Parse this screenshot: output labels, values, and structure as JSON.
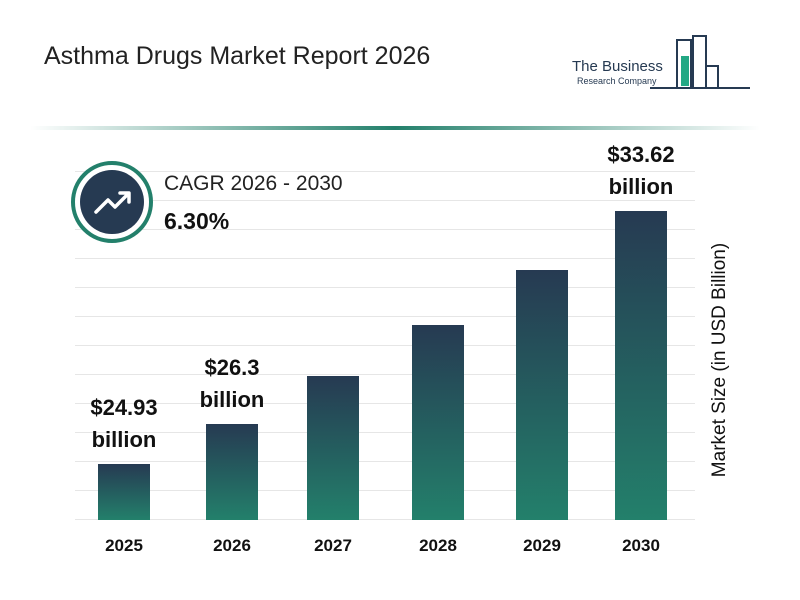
{
  "title": "Asthma Drugs Market Report 2026",
  "logo": {
    "line1": "The Business",
    "line2": "Research Company"
  },
  "cagr": {
    "label": "CAGR 2026 - 2030",
    "value": "6.30%"
  },
  "chart_data": {
    "type": "bar",
    "categories": [
      "2025",
      "2026",
      "2027",
      "2028",
      "2029",
      "2030"
    ],
    "values": [
      24.93,
      26.3,
      27.96,
      29.72,
      31.59,
      33.62
    ],
    "value_labels": [
      "$24.93 billion",
      "$26.3 billion",
      null,
      null,
      null,
      "$33.62 billion"
    ],
    "y_label": "Market Size (in USD Billion)",
    "ylim": [
      23,
      34
    ],
    "color_top": "#263a52",
    "color_bottom": "#23806b"
  }
}
